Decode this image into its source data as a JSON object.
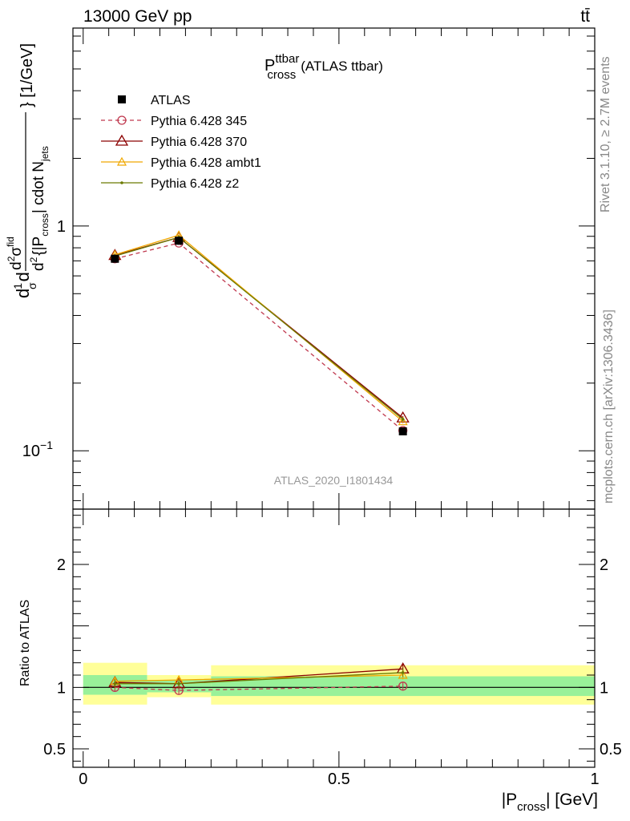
{
  "header": {
    "energy_label": "13000 GeV pp",
    "process_label": "tt̄"
  },
  "side_labels": {
    "rivet": "Rivet 3.1.10, ≥ 2.7M events",
    "mcplots": "mcplots.cern.ch [arXiv:1306.3436]"
  },
  "watermark": "ATLAS_2020_I1801434",
  "plot_title": {
    "main": "P",
    "sup": "ttbar",
    "sub": "cross",
    "rest": "(ATLAS ttbar)"
  },
  "ylabel_parts": {
    "d1": "d",
    "one": "1",
    "sigma": "σ",
    "d2": "d",
    "num_d2": "d",
    "num_sq": "2",
    "num_sigma": "σ",
    "num_fid": "fid",
    "den_d": "d",
    "den_sq": "2",
    "den_p": "{|P",
    "den_sub": "cross",
    "den_rest": "| cdot N",
    "den_jets": "jets",
    "close": "} [1/GeV]"
  },
  "xlabel_parts": {
    "main": "|P",
    "sub": "cross",
    "rest": "| [GeV]"
  },
  "ratio_ylabel": "Ratio to ATLAS",
  "colors": {
    "ATLAS": "#000000",
    "Pythia 6.428 345": "#c0394f",
    "Pythia 6.428 370": "#8b0000",
    "Pythia 6.428 ambt1": "#f0a800",
    "Pythia 6.428 z2": "#6b7a00",
    "band_inner": "#99f199",
    "band_outer": "#ffff99"
  },
  "chart_data": [
    {
      "type": "line",
      "panel": "main",
      "yscale": "log",
      "xlim": [
        -0.02,
        1.0
      ],
      "ylim": [
        0.055,
        7.6
      ],
      "y_ticks": [
        {
          "value": 1,
          "label": "1"
        },
        {
          "value": 0.1,
          "label": "10",
          "exp": "−1"
        }
      ],
      "legend_position": "top-left",
      "x_bins": [
        [
          0.0,
          0.125
        ],
        [
          0.125,
          0.25
        ],
        [
          0.25,
          1.0
        ]
      ],
      "series": [
        {
          "name": "ATLAS",
          "marker": "square",
          "x": [
            0.062,
            0.187,
            0.625
          ],
          "y": [
            0.715,
            0.86,
            0.122
          ]
        },
        {
          "name": "Pythia 6.428 345",
          "marker": "circle",
          "dash": true,
          "x": [
            0.062,
            0.187,
            0.625
          ],
          "y": [
            0.715,
            0.84,
            0.123
          ]
        },
        {
          "name": "Pythia 6.428 370",
          "marker": "triangle",
          "x": [
            0.062,
            0.187,
            0.625
          ],
          "y": [
            0.74,
            0.89,
            0.14
          ]
        },
        {
          "name": "Pythia 6.428 ambt1",
          "marker": "triangle-small",
          "x": [
            0.062,
            0.187,
            0.625
          ],
          "y": [
            0.745,
            0.91,
            0.135
          ]
        },
        {
          "name": "Pythia 6.428 z2",
          "marker": "dot",
          "x": [
            0.062,
            0.187,
            0.625
          ],
          "y": [
            0.735,
            0.89,
            0.138
          ]
        }
      ]
    },
    {
      "type": "line",
      "panel": "ratio",
      "xlim": [
        -0.02,
        1.0
      ],
      "ylim": [
        0.35,
        2.45
      ],
      "y_ticks": [
        {
          "value": 2,
          "label": "2"
        },
        {
          "value": 1,
          "label": "1"
        },
        {
          "value": 0.5,
          "label": "0.5"
        }
      ],
      "x_ticks": [
        {
          "value": 0,
          "label": "0"
        },
        {
          "value": 0.5,
          "label": "0.5"
        },
        {
          "value": 1,
          "label": "1"
        }
      ],
      "bands": [
        {
          "x": [
            0.0,
            0.125
          ],
          "inner": [
            0.94,
            1.1
          ],
          "outer": [
            0.86,
            1.2
          ]
        },
        {
          "x": [
            0.125,
            0.25
          ],
          "inner": [
            0.96,
            1.06
          ],
          "outer": [
            0.92,
            1.1
          ]
        },
        {
          "x": [
            0.25,
            1.0
          ],
          "inner": [
            0.93,
            1.09
          ],
          "outer": [
            0.86,
            1.18
          ]
        }
      ],
      "series": [
        {
          "name": "Pythia 6.428 345",
          "x": [
            0.062,
            0.187,
            0.625
          ],
          "y": [
            1.0,
            0.975,
            1.01
          ]
        },
        {
          "name": "Pythia 6.428 370",
          "x": [
            0.062,
            0.187,
            0.625
          ],
          "y": [
            1.04,
            1.03,
            1.15
          ]
        },
        {
          "name": "Pythia 6.428 ambt1",
          "x": [
            0.062,
            0.187,
            0.625
          ],
          "y": [
            1.05,
            1.06,
            1.1
          ]
        },
        {
          "name": "Pythia 6.428 z2",
          "x": [
            0.062,
            0.187,
            0.625
          ],
          "y": [
            1.03,
            1.03,
            1.12
          ]
        }
      ]
    }
  ]
}
